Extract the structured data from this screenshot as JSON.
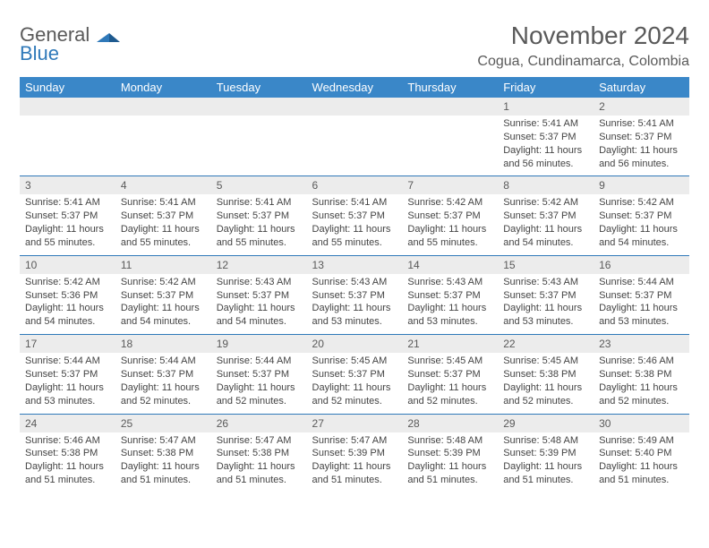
{
  "brand": {
    "line1": "General",
    "line2": "Blue"
  },
  "title": "November 2024",
  "location": "Cogua, Cundinamarca, Colombia",
  "colors": {
    "header_bg": "#3a87c8",
    "accent": "#2f79b9",
    "daynum_bg": "#ececec",
    "text_gray": "#5a5a5a"
  },
  "weekdays": [
    "Sunday",
    "Monday",
    "Tuesday",
    "Wednesday",
    "Thursday",
    "Friday",
    "Saturday"
  ],
  "weeks": [
    [
      {
        "n": "",
        "sr": "",
        "ss": "",
        "dl": ""
      },
      {
        "n": "",
        "sr": "",
        "ss": "",
        "dl": ""
      },
      {
        "n": "",
        "sr": "",
        "ss": "",
        "dl": ""
      },
      {
        "n": "",
        "sr": "",
        "ss": "",
        "dl": ""
      },
      {
        "n": "",
        "sr": "",
        "ss": "",
        "dl": ""
      },
      {
        "n": "1",
        "sr": "Sunrise: 5:41 AM",
        "ss": "Sunset: 5:37 PM",
        "dl": "Daylight: 11 hours and 56 minutes."
      },
      {
        "n": "2",
        "sr": "Sunrise: 5:41 AM",
        "ss": "Sunset: 5:37 PM",
        "dl": "Daylight: 11 hours and 56 minutes."
      }
    ],
    [
      {
        "n": "3",
        "sr": "Sunrise: 5:41 AM",
        "ss": "Sunset: 5:37 PM",
        "dl": "Daylight: 11 hours and 55 minutes."
      },
      {
        "n": "4",
        "sr": "Sunrise: 5:41 AM",
        "ss": "Sunset: 5:37 PM",
        "dl": "Daylight: 11 hours and 55 minutes."
      },
      {
        "n": "5",
        "sr": "Sunrise: 5:41 AM",
        "ss": "Sunset: 5:37 PM",
        "dl": "Daylight: 11 hours and 55 minutes."
      },
      {
        "n": "6",
        "sr": "Sunrise: 5:41 AM",
        "ss": "Sunset: 5:37 PM",
        "dl": "Daylight: 11 hours and 55 minutes."
      },
      {
        "n": "7",
        "sr": "Sunrise: 5:42 AM",
        "ss": "Sunset: 5:37 PM",
        "dl": "Daylight: 11 hours and 55 minutes."
      },
      {
        "n": "8",
        "sr": "Sunrise: 5:42 AM",
        "ss": "Sunset: 5:37 PM",
        "dl": "Daylight: 11 hours and 54 minutes."
      },
      {
        "n": "9",
        "sr": "Sunrise: 5:42 AM",
        "ss": "Sunset: 5:37 PM",
        "dl": "Daylight: 11 hours and 54 minutes."
      }
    ],
    [
      {
        "n": "10",
        "sr": "Sunrise: 5:42 AM",
        "ss": "Sunset: 5:36 PM",
        "dl": "Daylight: 11 hours and 54 minutes."
      },
      {
        "n": "11",
        "sr": "Sunrise: 5:42 AM",
        "ss": "Sunset: 5:37 PM",
        "dl": "Daylight: 11 hours and 54 minutes."
      },
      {
        "n": "12",
        "sr": "Sunrise: 5:43 AM",
        "ss": "Sunset: 5:37 PM",
        "dl": "Daylight: 11 hours and 54 minutes."
      },
      {
        "n": "13",
        "sr": "Sunrise: 5:43 AM",
        "ss": "Sunset: 5:37 PM",
        "dl": "Daylight: 11 hours and 53 minutes."
      },
      {
        "n": "14",
        "sr": "Sunrise: 5:43 AM",
        "ss": "Sunset: 5:37 PM",
        "dl": "Daylight: 11 hours and 53 minutes."
      },
      {
        "n": "15",
        "sr": "Sunrise: 5:43 AM",
        "ss": "Sunset: 5:37 PM",
        "dl": "Daylight: 11 hours and 53 minutes."
      },
      {
        "n": "16",
        "sr": "Sunrise: 5:44 AM",
        "ss": "Sunset: 5:37 PM",
        "dl": "Daylight: 11 hours and 53 minutes."
      }
    ],
    [
      {
        "n": "17",
        "sr": "Sunrise: 5:44 AM",
        "ss": "Sunset: 5:37 PM",
        "dl": "Daylight: 11 hours and 53 minutes."
      },
      {
        "n": "18",
        "sr": "Sunrise: 5:44 AM",
        "ss": "Sunset: 5:37 PM",
        "dl": "Daylight: 11 hours and 52 minutes."
      },
      {
        "n": "19",
        "sr": "Sunrise: 5:44 AM",
        "ss": "Sunset: 5:37 PM",
        "dl": "Daylight: 11 hours and 52 minutes."
      },
      {
        "n": "20",
        "sr": "Sunrise: 5:45 AM",
        "ss": "Sunset: 5:37 PM",
        "dl": "Daylight: 11 hours and 52 minutes."
      },
      {
        "n": "21",
        "sr": "Sunrise: 5:45 AM",
        "ss": "Sunset: 5:37 PM",
        "dl": "Daylight: 11 hours and 52 minutes."
      },
      {
        "n": "22",
        "sr": "Sunrise: 5:45 AM",
        "ss": "Sunset: 5:38 PM",
        "dl": "Daylight: 11 hours and 52 minutes."
      },
      {
        "n": "23",
        "sr": "Sunrise: 5:46 AM",
        "ss": "Sunset: 5:38 PM",
        "dl": "Daylight: 11 hours and 52 minutes."
      }
    ],
    [
      {
        "n": "24",
        "sr": "Sunrise: 5:46 AM",
        "ss": "Sunset: 5:38 PM",
        "dl": "Daylight: 11 hours and 51 minutes."
      },
      {
        "n": "25",
        "sr": "Sunrise: 5:47 AM",
        "ss": "Sunset: 5:38 PM",
        "dl": "Daylight: 11 hours and 51 minutes."
      },
      {
        "n": "26",
        "sr": "Sunrise: 5:47 AM",
        "ss": "Sunset: 5:38 PM",
        "dl": "Daylight: 11 hours and 51 minutes."
      },
      {
        "n": "27",
        "sr": "Sunrise: 5:47 AM",
        "ss": "Sunset: 5:39 PM",
        "dl": "Daylight: 11 hours and 51 minutes."
      },
      {
        "n": "28",
        "sr": "Sunrise: 5:48 AM",
        "ss": "Sunset: 5:39 PM",
        "dl": "Daylight: 11 hours and 51 minutes."
      },
      {
        "n": "29",
        "sr": "Sunrise: 5:48 AM",
        "ss": "Sunset: 5:39 PM",
        "dl": "Daylight: 11 hours and 51 minutes."
      },
      {
        "n": "30",
        "sr": "Sunrise: 5:49 AM",
        "ss": "Sunset: 5:40 PM",
        "dl": "Daylight: 11 hours and 51 minutes."
      }
    ]
  ]
}
